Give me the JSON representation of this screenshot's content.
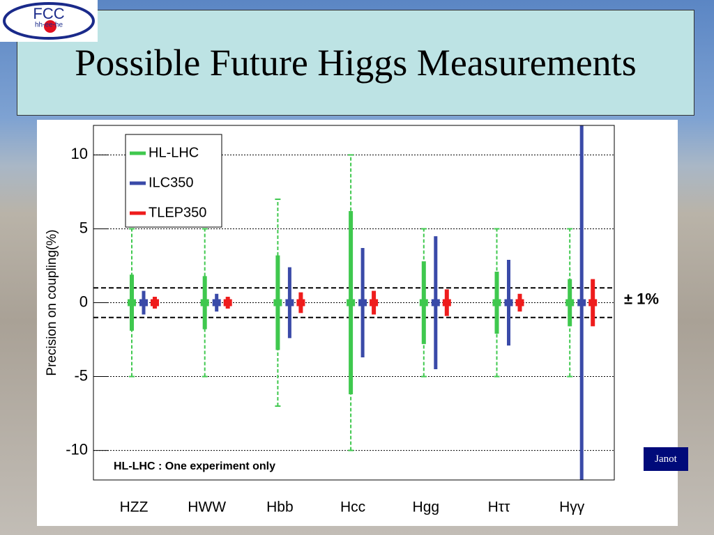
{
  "slide": {
    "title": "Possible Future Higgs Measurements",
    "logo": "FCC",
    "logo_sub": "hh-ee-he",
    "author": "Janot"
  },
  "chart_data": {
    "type": "errorbar",
    "ylabel": "Precision on coupling(%)",
    "note": "HL-LHC : One experiment only",
    "categories": [
      "HZZ",
      "HWW",
      "Hbb",
      "Hcc",
      "Hgg",
      "Hττ",
      "Hγγ"
    ],
    "series": [
      {
        "name": "HL-LHC",
        "color": "#3fc84e",
        "values": [
          0,
          0,
          0,
          0,
          0,
          0,
          0
        ],
        "errors": [
          1.9,
          1.8,
          3.2,
          6.2,
          2.8,
          2.1,
          1.6
        ],
        "outer_errors": [
          5,
          5,
          7,
          10,
          5,
          5,
          5
        ]
      },
      {
        "name": "ILC350",
        "color": "#3a4aa8",
        "values": [
          0,
          0,
          0,
          0,
          0,
          0,
          0
        ],
        "errors": [
          0.8,
          0.6,
          2.4,
          3.7,
          4.5,
          2.9,
          12
        ]
      },
      {
        "name": "TLEP350",
        "color": "#ee1c1c",
        "values": [
          0,
          0,
          0,
          0,
          0,
          0,
          0
        ],
        "errors": [
          0.4,
          0.4,
          0.7,
          0.8,
          0.9,
          0.6,
          1.6
        ]
      }
    ],
    "band": [
      -1,
      1
    ],
    "band_label": "± 1%",
    "ylim": [
      -12,
      12
    ],
    "yticks": [
      -10,
      -5,
      0,
      5,
      10
    ],
    "grid": true,
    "legend": "upper left"
  }
}
